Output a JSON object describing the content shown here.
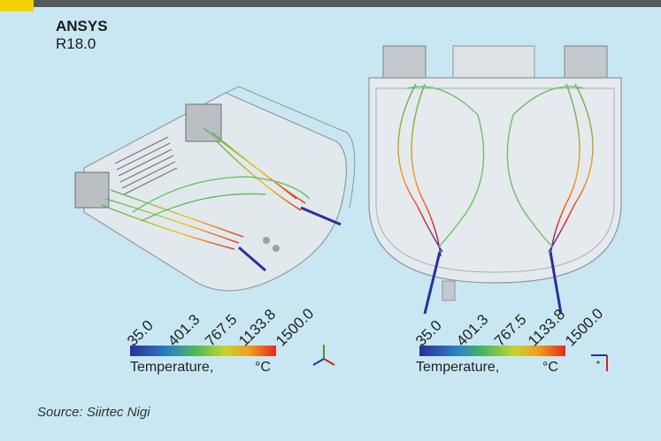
{
  "header": {
    "brand": "ANSYS",
    "version": "R18.0"
  },
  "legend_left": {
    "ticks": [
      "35.0",
      "401.3",
      "767.5",
      "1133.8",
      "1500.0"
    ],
    "label": "Temperature,",
    "unit": "°C"
  },
  "legend_right": {
    "ticks": [
      "35.0",
      "401.3",
      "767.5",
      "1133.8",
      "1500.0"
    ],
    "label": "Temperature,",
    "unit": "°C"
  },
  "footer": {
    "source": "Source: Siirtec Nigi"
  },
  "colors": {
    "background": "#c9e7f3",
    "topbar": "#55595c",
    "accent": "#f2d200",
    "cold": "#2c2f9a",
    "mid": "#4fb85a",
    "hot": "#e22a1f"
  },
  "icons": {
    "left_triad": "axis-triad-icon",
    "right_triad": "axis-triad-icon"
  }
}
